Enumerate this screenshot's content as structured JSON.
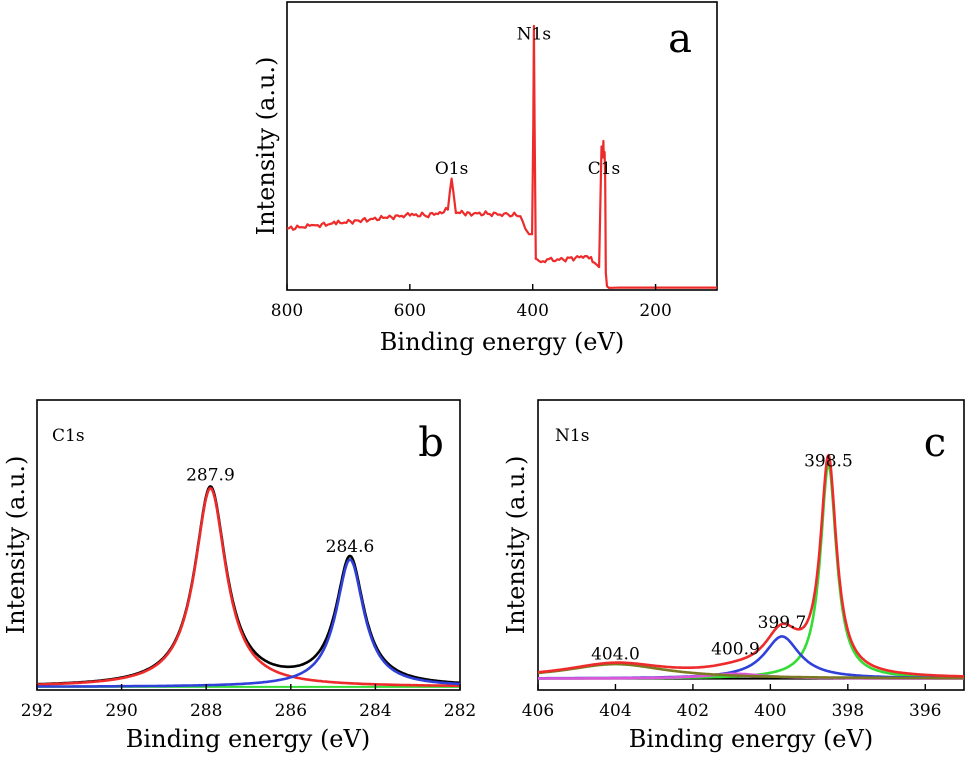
{
  "chart_data": [
    {
      "id": "a",
      "panel_label": "a",
      "type": "line",
      "xlabel": "Binding energy (eV)",
      "ylabel": "Intensity (a.u.)",
      "x_reversed": true,
      "xlim": [
        800,
        100
      ],
      "ylim": [
        0,
        100
      ],
      "xticks": [
        800,
        600,
        400,
        200
      ],
      "xtick_labels": [
        "800",
        "600",
        "400",
        "200"
      ],
      "annotations": [
        {
          "text": "N1s",
          "x": 398,
          "y": 91
        },
        {
          "text": "O1s",
          "x": 532,
          "y": 42
        },
        {
          "text": "C1s",
          "x": 284,
          "y": 42
        }
      ],
      "series": [
        {
          "color": "#ee2b2b",
          "x": [
            800,
            760,
            720,
            680,
            640,
            600,
            570,
            548,
            538,
            535,
            532,
            529,
            525,
            500,
            470,
            440,
            420,
            412,
            406,
            401,
            399,
            398,
            397,
            395,
            390,
            370,
            340,
            315,
            305,
            300,
            292,
            288,
            286,
            285,
            284.5,
            283,
            282,
            281,
            279,
            276,
            260,
            200,
            150,
            100
          ],
          "y": [
            22,
            23,
            24,
            25,
            26,
            27,
            27,
            28,
            29,
            36,
            41,
            35,
            28,
            27.5,
            27.5,
            27,
            27,
            22,
            20,
            20,
            60,
            96,
            60,
            11,
            10,
            10.5,
            11,
            12,
            11,
            9,
            8,
            52,
            48,
            54,
            48,
            50,
            40,
            6,
            1,
            0.4,
            0.5,
            0.5,
            0.5,
            0.5
          ]
        }
      ]
    },
    {
      "id": "b",
      "panel_label": "b",
      "type": "line",
      "xlabel": "Binding energy (eV)",
      "ylabel": "Intensity (a.u.)",
      "title": "C1s",
      "x_reversed": true,
      "xlim": [
        292,
        282
      ],
      "ylim": [
        0,
        100
      ],
      "xticks": [
        292,
        290,
        288,
        286,
        284,
        282
      ],
      "xtick_labels": [
        "292",
        "290",
        "288",
        "286",
        "284",
        "282"
      ],
      "annotations": [
        {
          "text": "287.9",
          "x": 287.9,
          "y": 96
        },
        {
          "text": "284.6",
          "x": 284.6,
          "y": 63
        }
      ],
      "peaks": [
        {
          "label": "287.9",
          "center": 287.9,
          "height": 92,
          "width": 0.45,
          "color": "#ee2b2b"
        },
        {
          "label": "284.6",
          "center": 284.6,
          "height": 59,
          "width": 0.4,
          "color": "#3040d8"
        }
      ],
      "baseline": {
        "color": "#33dd33",
        "y": 0.5
      },
      "envelope_color": "#000000"
    },
    {
      "id": "c",
      "panel_label": "c",
      "type": "line",
      "xlabel": "Binding energy (eV)",
      "ylabel": "Intensity (a.u.)",
      "title": "N1s",
      "x_reversed": true,
      "xlim": [
        406,
        395
      ],
      "ylim": [
        0,
        100
      ],
      "xticks": [
        406,
        404,
        402,
        400,
        398,
        396
      ],
      "xtick_labels": [
        "406",
        "404",
        "402",
        "400",
        "398",
        "396"
      ],
      "annotations": [
        {
          "text": "398.5",
          "x": 398.5,
          "y": 89
        },
        {
          "text": "399.7",
          "x": 399.7,
          "y": 22
        },
        {
          "text": "400.9",
          "x": 400.9,
          "y": 11
        },
        {
          "text": "404.0",
          "x": 404.0,
          "y": 9
        }
      ],
      "peaks": [
        {
          "label": "398.5",
          "center": 398.5,
          "height": 89,
          "width": 0.25,
          "color": "#33dd33"
        },
        {
          "label": "399.7",
          "center": 399.7,
          "height": 17.5,
          "width": 0.55,
          "color": "#3040d8"
        },
        {
          "label": "400.9",
          "center": 400.9,
          "height": 2,
          "width": 0.9,
          "color": "#dd55dd"
        },
        {
          "label": "404.0",
          "center": 404.0,
          "height": 6,
          "width": 1.6,
          "color": "#7a7a20"
        }
      ],
      "baseline": {
        "color": "#000000",
        "y": 1
      },
      "envelope_color": "#ee2b2b"
    }
  ]
}
